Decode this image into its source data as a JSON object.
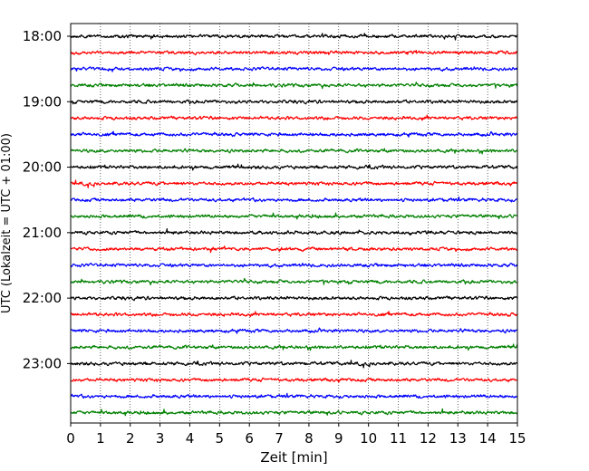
{
  "chart_data": {
    "type": "line",
    "subtype": "helicorder",
    "xlabel": "Zeit  [min]",
    "ylabel": "UTC (Lokalzeit = UTC + 01:00)",
    "xlim": [
      0,
      15
    ],
    "x_ticks": [
      0,
      1,
      2,
      3,
      4,
      5,
      6,
      7,
      8,
      9,
      10,
      11,
      12,
      13,
      14,
      15
    ],
    "x_grid": "dotted vertical lines at each minute",
    "y_tick_labels": [
      "18:00",
      "19:00",
      "20:00",
      "21:00",
      "22:00",
      "23:00"
    ],
    "trace_interval_minutes": 15,
    "trace_colors_cycle": [
      "#000000",
      "#ff0000",
      "#0000ff",
      "#008000"
    ],
    "traces": [
      {
        "start": "18:00",
        "color": "#000000"
      },
      {
        "start": "18:15",
        "color": "#ff0000"
      },
      {
        "start": "18:30",
        "color": "#0000ff"
      },
      {
        "start": "18:45",
        "color": "#008000"
      },
      {
        "start": "19:00",
        "color": "#000000"
      },
      {
        "start": "19:15",
        "color": "#ff0000"
      },
      {
        "start": "19:30",
        "color": "#0000ff"
      },
      {
        "start": "19:45",
        "color": "#008000"
      },
      {
        "start": "20:00",
        "color": "#000000"
      },
      {
        "start": "20:15",
        "color": "#ff0000"
      },
      {
        "start": "20:30",
        "color": "#0000ff"
      },
      {
        "start": "20:45",
        "color": "#008000"
      },
      {
        "start": "21:00",
        "color": "#000000"
      },
      {
        "start": "21:15",
        "color": "#ff0000"
      },
      {
        "start": "21:30",
        "color": "#0000ff"
      },
      {
        "start": "21:45",
        "color": "#008000"
      },
      {
        "start": "22:00",
        "color": "#000000"
      },
      {
        "start": "22:15",
        "color": "#ff0000"
      },
      {
        "start": "22:30",
        "color": "#0000ff"
      },
      {
        "start": "22:45",
        "color": "#008000"
      },
      {
        "start": "23:00",
        "color": "#000000"
      },
      {
        "start": "23:15",
        "color": "#ff0000"
      },
      {
        "start": "23:30",
        "color": "#0000ff"
      },
      {
        "start": "23:45",
        "color": "#008000"
      }
    ],
    "legend": "none",
    "title": ""
  }
}
